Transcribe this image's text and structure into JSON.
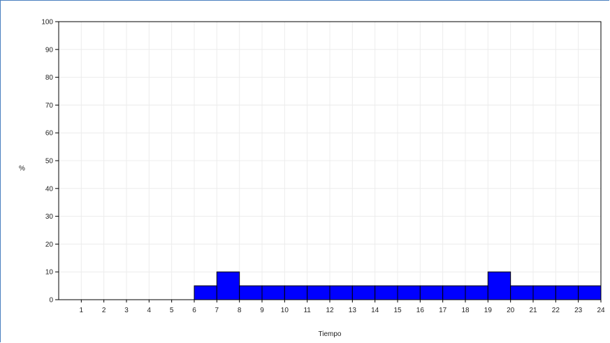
{
  "chart_data": {
    "type": "bar",
    "title": "",
    "xlabel": "Tiempo",
    "ylabel": "%",
    "ylim": [
      0,
      100
    ],
    "xlim": [
      0,
      24
    ],
    "yticks": [
      0,
      10,
      20,
      30,
      40,
      50,
      60,
      70,
      80,
      90,
      100
    ],
    "xticks": [
      1,
      2,
      3,
      4,
      5,
      6,
      7,
      8,
      9,
      10,
      11,
      12,
      13,
      14,
      15,
      16,
      17,
      18,
      19,
      20,
      21,
      22,
      23,
      24
    ],
    "grid": true,
    "bar_color": "#0000ff",
    "bars": [
      {
        "x0": 0,
        "x1": 1,
        "value": 0
      },
      {
        "x0": 1,
        "x1": 2,
        "value": 0
      },
      {
        "x0": 2,
        "x1": 3,
        "value": 0
      },
      {
        "x0": 3,
        "x1": 4,
        "value": 0
      },
      {
        "x0": 4,
        "x1": 5,
        "value": 0
      },
      {
        "x0": 5,
        "x1": 6,
        "value": 0
      },
      {
        "x0": 6,
        "x1": 7,
        "value": 5
      },
      {
        "x0": 7,
        "x1": 8,
        "value": 10
      },
      {
        "x0": 8,
        "x1": 9,
        "value": 5
      },
      {
        "x0": 9,
        "x1": 10,
        "value": 5
      },
      {
        "x0": 10,
        "x1": 11,
        "value": 5
      },
      {
        "x0": 11,
        "x1": 12,
        "value": 5
      },
      {
        "x0": 12,
        "x1": 13,
        "value": 5
      },
      {
        "x0": 13,
        "x1": 14,
        "value": 5
      },
      {
        "x0": 14,
        "x1": 15,
        "value": 5
      },
      {
        "x0": 15,
        "x1": 16,
        "value": 5
      },
      {
        "x0": 16,
        "x1": 17,
        "value": 5
      },
      {
        "x0": 17,
        "x1": 18,
        "value": 5
      },
      {
        "x0": 18,
        "x1": 19,
        "value": 5
      },
      {
        "x0": 19,
        "x1": 20,
        "value": 10
      },
      {
        "x0": 20,
        "x1": 21,
        "value": 5
      },
      {
        "x0": 21,
        "x1": 22,
        "value": 5
      },
      {
        "x0": 22,
        "x1": 23,
        "value": 5
      },
      {
        "x0": 23,
        "x1": 24,
        "value": 5
      }
    ]
  }
}
